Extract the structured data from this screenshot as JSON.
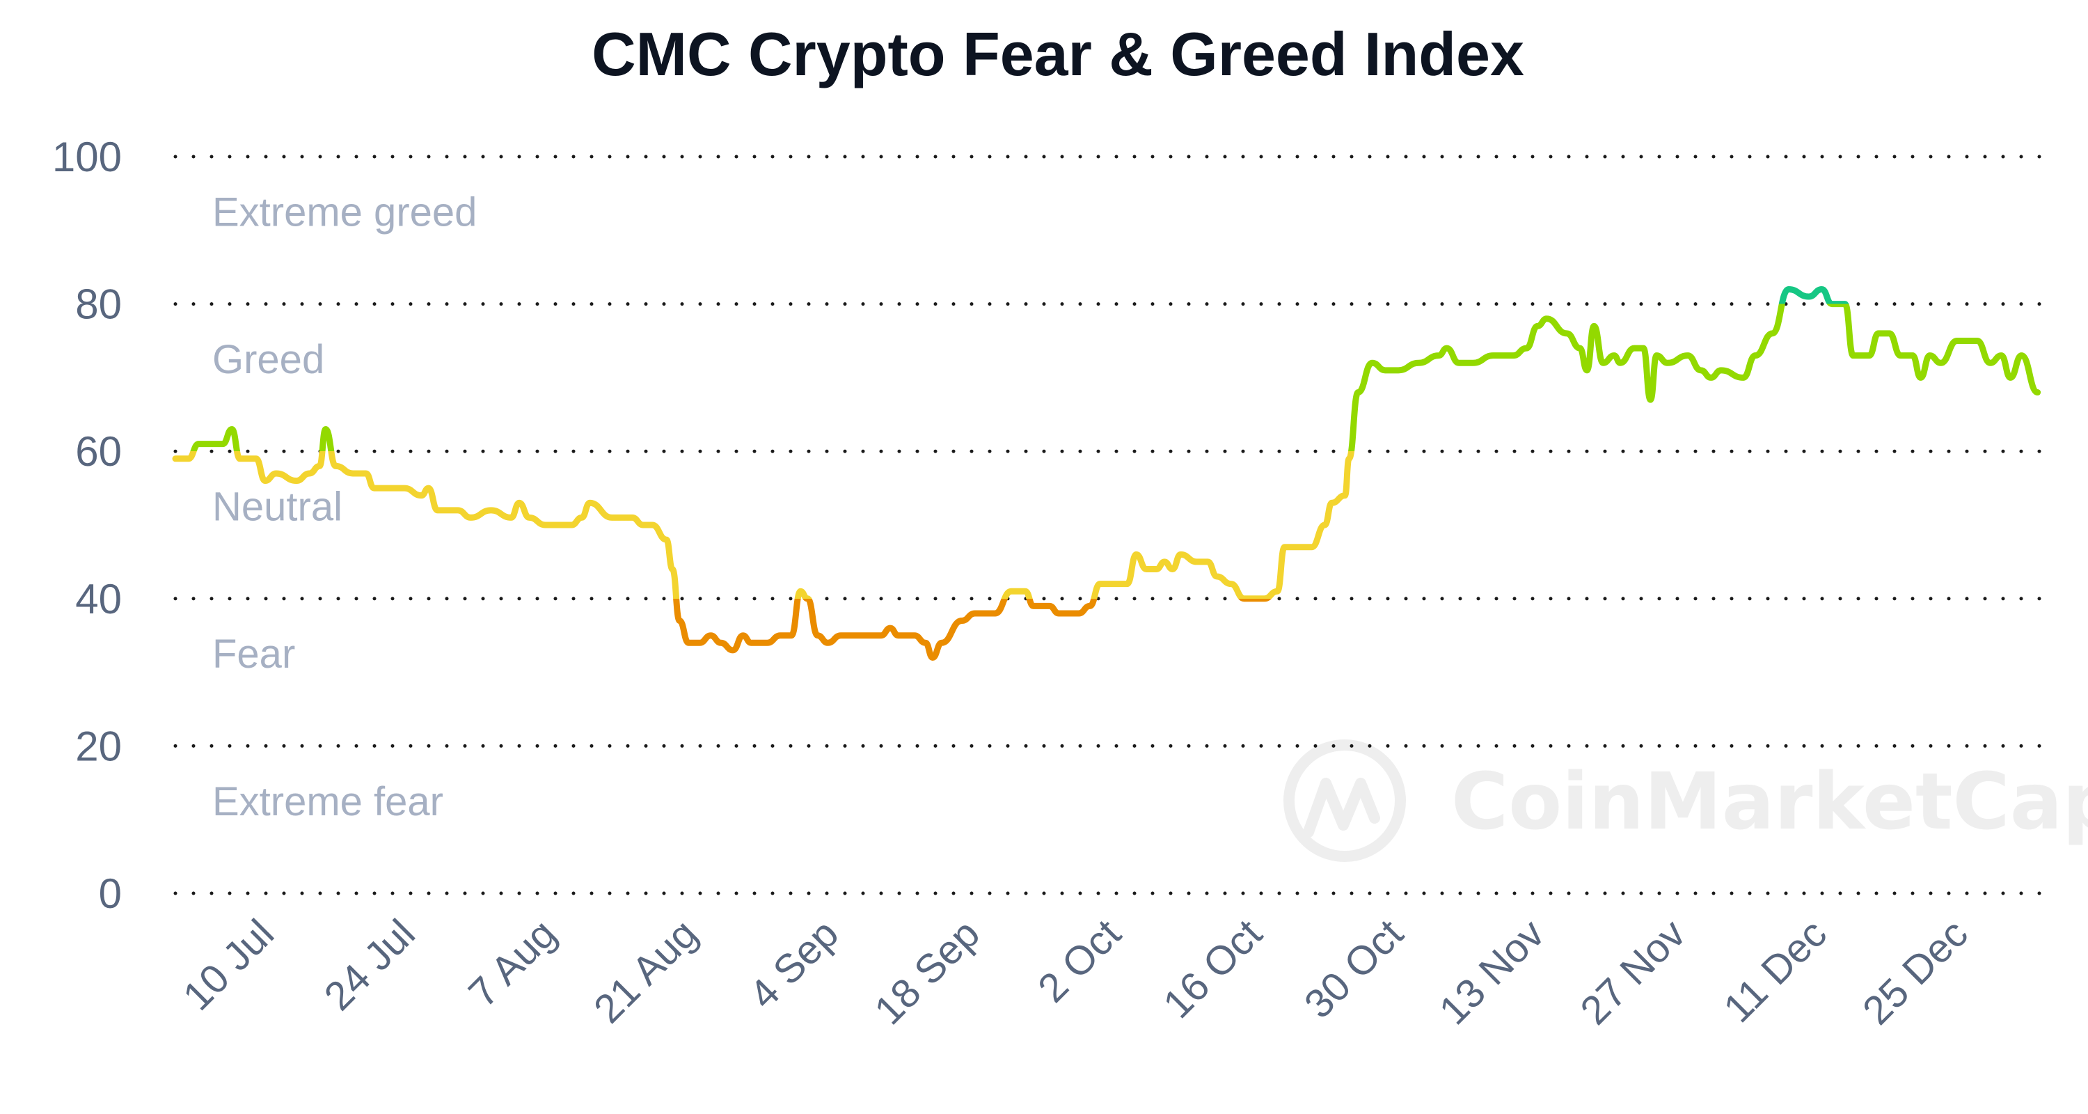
{
  "chart_data": {
    "type": "line",
    "title": "CMC Crypto Fear & Greed Index",
    "xlabel": "",
    "ylabel": "",
    "x_unit": "days since 30 Jun",
    "xlim": [
      0,
      185
    ],
    "ylim": [
      0,
      100
    ],
    "grid": true,
    "grid_style": "dotted",
    "yticks": [
      0,
      20,
      40,
      60,
      80,
      100
    ],
    "ytick_labels": [
      "0",
      "20",
      "40",
      "60",
      "80",
      "100"
    ],
    "xticks": [
      {
        "x": 10,
        "label": "10 Jul"
      },
      {
        "x": 24,
        "label": "24 Jul"
      },
      {
        "x": 38,
        "label": "7 Aug"
      },
      {
        "x": 52,
        "label": "21 Aug"
      },
      {
        "x": 66,
        "label": "4 Sep"
      },
      {
        "x": 80,
        "label": "18 Sep"
      },
      {
        "x": 94,
        "label": "2 Oct"
      },
      {
        "x": 108,
        "label": "16 Oct"
      },
      {
        "x": 122,
        "label": "30 Oct"
      },
      {
        "x": 136,
        "label": "13 Nov"
      },
      {
        "x": 150,
        "label": "27 Nov"
      },
      {
        "x": 164,
        "label": "11 Dec"
      },
      {
        "x": 178,
        "label": "25 Dec"
      }
    ],
    "bands": [
      {
        "label": "Extreme greed",
        "from": 80,
        "to": 100,
        "color": "#16c784"
      },
      {
        "label": "Greed",
        "from": 60,
        "to": 80,
        "color": "#93d900"
      },
      {
        "label": "Neutral",
        "from": 40,
        "to": 60,
        "color": "#f3d42f"
      },
      {
        "label": "Fear",
        "from": 20,
        "to": 40,
        "color": "#ea8c00"
      },
      {
        "label": "Extreme fear",
        "from": 0,
        "to": 20,
        "color": "#ea3943"
      }
    ],
    "series": [
      {
        "name": "Fear & Greed Index",
        "x": [
          0,
          1.3,
          2.3,
          4.7,
          5.6,
          6.4,
          8,
          8.9,
          10,
          12,
          13.3,
          14.3,
          14.9,
          15.9,
          17.6,
          18.9,
          19.7,
          21.3,
          22.7,
          24.4,
          25.1,
          26,
          28,
          29.3,
          31.3,
          33.3,
          34.1,
          35.1,
          36.7,
          39.3,
          40.3,
          41.1,
          43.3,
          45.3,
          46.4,
          47.3,
          48.7,
          49.3,
          50,
          50.9,
          52,
          53.1,
          54.1,
          55.3,
          56.3,
          57.1,
          58.7,
          60,
          61.1,
          62,
          62.7,
          63.7,
          64.7,
          66,
          67.3,
          70,
          70.9,
          71.7,
          73.3,
          74.4,
          75.1,
          76,
          78,
          79.3,
          81.3,
          82.9,
          84.3,
          85.1,
          86.7,
          87.6,
          88.7,
          89.6,
          90.7,
          91.7,
          93.3,
          94.4,
          95.3,
          96.3,
          97.3,
          98.1,
          98.9,
          99.7,
          101.3,
          102.4,
          103.3,
          104.7,
          106,
          106.7,
          108,
          109.3,
          110,
          111.3,
          112.7,
          114,
          114.7,
          116,
          116.4,
          117.3,
          118.7,
          120,
          121.3,
          123.3,
          125.3,
          126.1,
          127.3,
          128.7,
          130.7,
          132.7,
          134,
          135.1,
          136,
          138,
          139.3,
          140,
          140.7,
          141.6,
          142.7,
          143.3,
          144.7,
          145.6,
          146.3,
          146.9,
          148,
          150,
          151.3,
          152.3,
          153.3,
          155.5,
          156.7,
          158.4,
          160,
          162,
          163.3,
          164.3,
          165.6,
          166.4,
          168,
          168.9,
          170,
          171.1,
          172.3,
          173.1,
          174,
          175.1,
          176.7,
          178.7,
          180,
          181.1,
          182,
          183.1,
          184.7
        ],
        "values": [
          59,
          59,
          61,
          61,
          63,
          59,
          59,
          56,
          57,
          56,
          57,
          58,
          63,
          58,
          57,
          57,
          55,
          55,
          55,
          54,
          55,
          52,
          52,
          51,
          52,
          51,
          53,
          51,
          50,
          50,
          51,
          53,
          51,
          51,
          50,
          50,
          48,
          44,
          37,
          34,
          34,
          35,
          34,
          33,
          35,
          34,
          34,
          35,
          35,
          41,
          40,
          35,
          34,
          35,
          35,
          35,
          36,
          35,
          35,
          34,
          32,
          34,
          37,
          38,
          38,
          41,
          41,
          39,
          39,
          38,
          38,
          38,
          39,
          42,
          42,
          42,
          46,
          44,
          44,
          45,
          44,
          46,
          45,
          45,
          43,
          42,
          40,
          40,
          40,
          41,
          47,
          47,
          47,
          50,
          53,
          54,
          59,
          68,
          72,
          71,
          71,
          72,
          73,
          74,
          72,
          72,
          73,
          73,
          74,
          77,
          78,
          76,
          74,
          71,
          77,
          72,
          73,
          72,
          74,
          74,
          67,
          73,
          72,
          73,
          71,
          70,
          71,
          70,
          73,
          76,
          82,
          81,
          82,
          80,
          80,
          73,
          73,
          76,
          76,
          73,
          73,
          70,
          73,
          72,
          75,
          75,
          72,
          73,
          70,
          73,
          68
        ]
      }
    ]
  },
  "watermark": {
    "text": "CoinMarketCap"
  }
}
